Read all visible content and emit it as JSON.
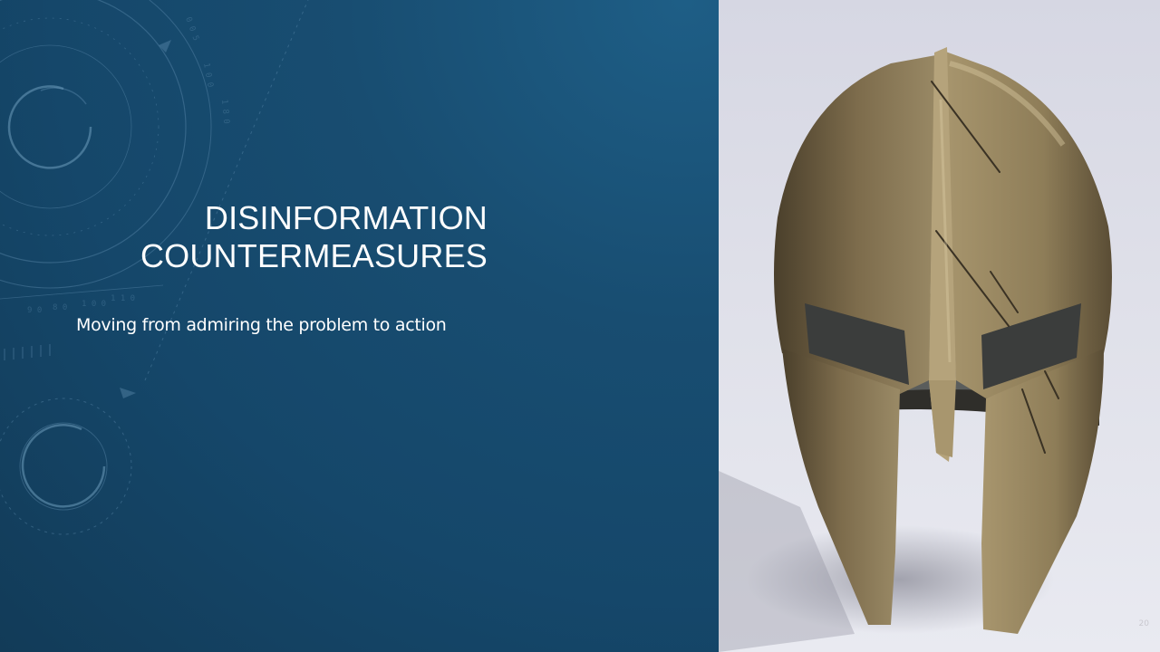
{
  "slide": {
    "title_line1": "DISINFORMATION",
    "title_line2": "COUNTERMEASURES",
    "subtitle": "Moving from admiring the problem to action",
    "slide_number": "20"
  },
  "image": {
    "subject": "helmet-photo"
  },
  "colors": {
    "panel_blue": "#184d71",
    "text": "#ffffff",
    "photo_bg": "#dfe0e9",
    "bronze": "#8a7a58"
  }
}
